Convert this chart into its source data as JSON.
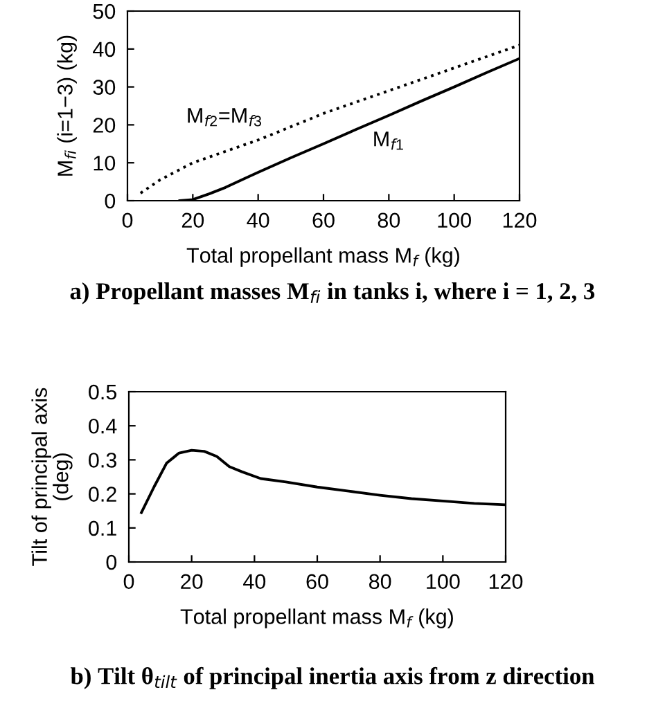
{
  "chart_data": [
    {
      "type": "line",
      "title": "a) Propellant masses M$_{fi}$ in tanks i, where i = 1, 2, 3",
      "xlabel": "Total propellant mass M$_{f}$ (kg)",
      "ylabel": "M$_{fi}$ (i=1−3) (kg)",
      "xlim": [
        0,
        120
      ],
      "ylim": [
        0,
        50
      ],
      "xticks": [
        0,
        20,
        40,
        60,
        80,
        100,
        120
      ],
      "yticks": [
        0,
        10,
        20,
        30,
        40,
        50
      ],
      "grid": false,
      "legend": false,
      "series": [
        {
          "name": "M$_{f1}$",
          "color": "#000000",
          "line_style": "solid",
          "x": [
            16,
            20,
            25,
            30,
            40,
            50,
            60,
            70,
            80,
            90,
            100,
            110,
            120
          ],
          "values": [
            0,
            0.3,
            1.8,
            3.5,
            7.5,
            11.3,
            15,
            18.8,
            22.5,
            26.3,
            30,
            33.8,
            37.5
          ]
        },
        {
          "name": "M$_{f2}$=M$_{f3}$",
          "color": "#000000",
          "line_style": "dotted",
          "x": [
            4,
            10,
            20,
            30,
            40,
            50,
            60,
            70,
            80,
            90,
            100,
            110,
            120
          ],
          "values": [
            2,
            5.5,
            10,
            13,
            16,
            19.5,
            23,
            26,
            29,
            32,
            35,
            38,
            41
          ]
        }
      ]
    },
    {
      "type": "line",
      "title": "b) Tilt θ$_{tilt}$ of principal inertia axis from z direction",
      "xlabel": "Total propellant mass M$_{f}$ (kg)",
      "ylabel": "Tilt of principal axis\n(deg)",
      "xlim": [
        0,
        120
      ],
      "ylim": [
        0,
        0.5
      ],
      "xticks": [
        0,
        20,
        40,
        60,
        80,
        100,
        120
      ],
      "yticks": [
        0,
        0.1,
        0.2,
        0.3,
        0.4,
        0.5
      ],
      "grid": false,
      "legend": false,
      "series": [
        {
          "color": "#000000",
          "line_style": "solid",
          "x": [
            4,
            8,
            12,
            16,
            20,
            24,
            28,
            32,
            36,
            42,
            50,
            60,
            70,
            80,
            90,
            100,
            110,
            120
          ],
          "values": [
            0.145,
            0.22,
            0.29,
            0.32,
            0.328,
            0.325,
            0.31,
            0.28,
            0.265,
            0.245,
            0.235,
            0.22,
            0.208,
            0.196,
            0.186,
            0.179,
            0.172,
            0.168
          ]
        }
      ]
    }
  ]
}
